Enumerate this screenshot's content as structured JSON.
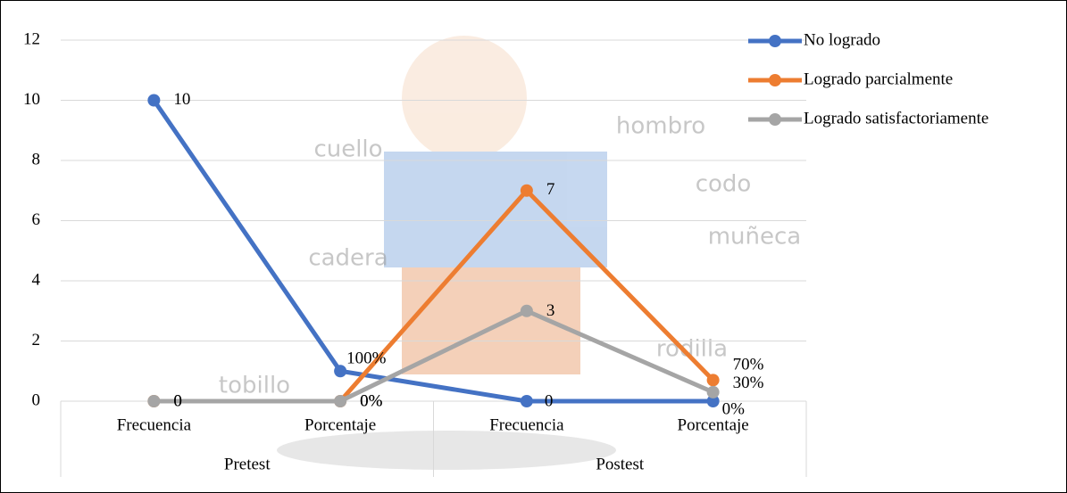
{
  "chart_data": {
    "type": "line",
    "categories": [
      "Frecuencia",
      "Porcentaje",
      "Frecuencia",
      "Porcentaje"
    ],
    "groups": [
      "Pretest",
      "Postest"
    ],
    "series": [
      {
        "name": "No logrado",
        "color": "#4472c4",
        "values": [
          10,
          1,
          0,
          0
        ],
        "value_labels": [
          "10",
          "100%",
          "0",
          "0%"
        ]
      },
      {
        "name": "Logrado parcialmente",
        "color": "#ed7d31",
        "values": [
          0,
          0,
          7,
          0.7
        ],
        "value_labels": [
          "0",
          "0%",
          "7",
          "70%"
        ]
      },
      {
        "name": "Logrado satisfactoriamente",
        "color": "#a5a5a5",
        "values": [
          0,
          0,
          3,
          0.3
        ],
        "value_labels": [
          "0",
          "0%",
          "3",
          "30%"
        ]
      }
    ],
    "ylim": [
      0,
      12
    ],
    "yticks": [
      0,
      2,
      4,
      6,
      8,
      10,
      12
    ],
    "grid": true,
    "legend": "right",
    "background_labels": [
      "cuello",
      "hombro",
      "codo",
      "muñeca",
      "cadera",
      "rodilla",
      "tobillo"
    ]
  }
}
